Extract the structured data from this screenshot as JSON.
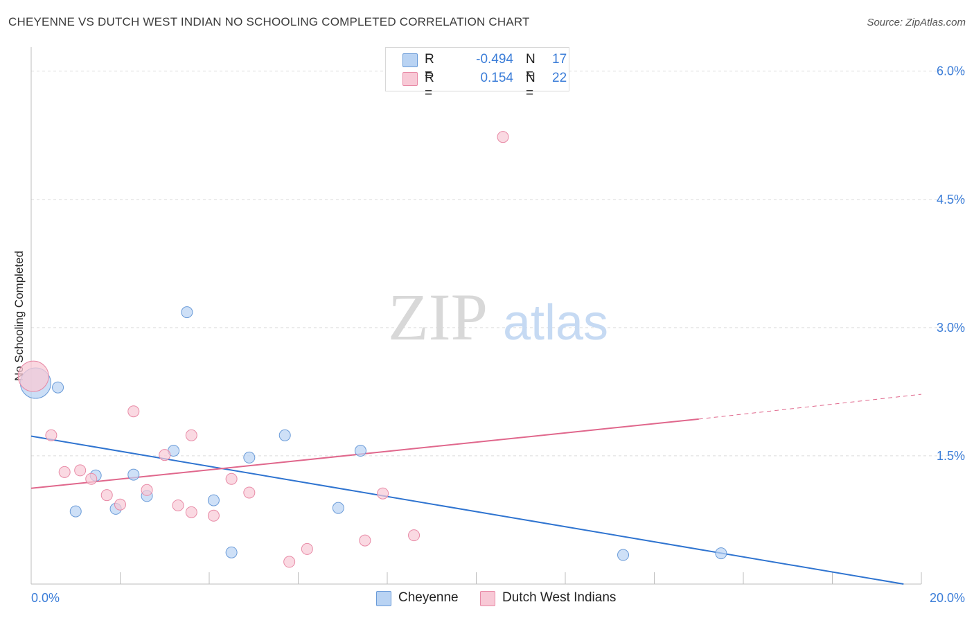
{
  "header": {
    "title": "CHEYENNE VS DUTCH WEST INDIAN NO SCHOOLING COMPLETED CORRELATION CHART",
    "source": "Source: ZipAtlas.com"
  },
  "watermark": {
    "zip": "ZIP",
    "atlas": "atlas"
  },
  "legend": {
    "rows": [
      {
        "r_label": "R =",
        "r_value": "-0.494",
        "n_label": "N =",
        "n_value": "17"
      },
      {
        "r_label": "R =",
        "r_value": "0.154",
        "n_label": "N =",
        "n_value": "22"
      }
    ]
  },
  "chart_data": {
    "type": "scatter",
    "title": "CHEYENNE VS DUTCH WEST INDIAN NO SCHOOLING COMPLETED CORRELATION CHART",
    "xlabel": "",
    "ylabel": "No Schooling Completed",
    "xlim": [
      0,
      20
    ],
    "ylim": [
      0,
      6.2
    ],
    "x_tick_labels": [
      "0.0%",
      "20.0%"
    ],
    "y_ticks": [
      1.5,
      3.0,
      4.5,
      6.0
    ],
    "y_tick_labels": [
      "1.5%",
      "3.0%",
      "4.5%",
      "6.0%"
    ],
    "grid": "horizontal dashed",
    "colors": {
      "cheyenne_fill": "#b9d3f3",
      "cheyenne_stroke": "#6a9bd8",
      "cheyenne_line": "#2f74d0",
      "dutch_fill": "#f8c9d6",
      "dutch_stroke": "#e88aa6",
      "dutch_line": "#e0678c",
      "tick_label": "#3b7dd8"
    },
    "series": [
      {
        "name": "Cheyenne",
        "points": [
          {
            "x": 0.1,
            "y": 2.35
          },
          {
            "x": 0.6,
            "y": 2.3
          },
          {
            "x": 1.0,
            "y": 0.85
          },
          {
            "x": 1.45,
            "y": 1.27
          },
          {
            "x": 1.9,
            "y": 0.88
          },
          {
            "x": 2.3,
            "y": 1.28
          },
          {
            "x": 2.6,
            "y": 1.03
          },
          {
            "x": 3.2,
            "y": 1.56
          },
          {
            "x": 3.5,
            "y": 3.18
          },
          {
            "x": 4.1,
            "y": 0.98
          },
          {
            "x": 4.5,
            "y": 0.37
          },
          {
            "x": 4.9,
            "y": 1.48
          },
          {
            "x": 5.7,
            "y": 1.74
          },
          {
            "x": 6.9,
            "y": 0.89
          },
          {
            "x": 7.4,
            "y": 1.56
          },
          {
            "x": 13.3,
            "y": 0.34
          },
          {
            "x": 15.5,
            "y": 0.36
          }
        ],
        "trend": {
          "x1": 0,
          "y1": 1.73,
          "x2": 19.6,
          "y2": 0.0
        }
      },
      {
        "name": "Dutch West Indians",
        "points": [
          {
            "x": 0.05,
            "y": 2.43
          },
          {
            "x": 0.45,
            "y": 1.74
          },
          {
            "x": 0.75,
            "y": 1.31
          },
          {
            "x": 1.1,
            "y": 1.33
          },
          {
            "x": 1.35,
            "y": 1.23
          },
          {
            "x": 1.7,
            "y": 1.04
          },
          {
            "x": 2.0,
            "y": 0.93
          },
          {
            "x": 2.3,
            "y": 2.02
          },
          {
            "x": 2.6,
            "y": 1.1
          },
          {
            "x": 3.0,
            "y": 1.51
          },
          {
            "x": 3.3,
            "y": 0.92
          },
          {
            "x": 3.6,
            "y": 0.84
          },
          {
            "x": 3.6,
            "y": 1.74
          },
          {
            "x": 4.1,
            "y": 0.8
          },
          {
            "x": 4.5,
            "y": 1.23
          },
          {
            "x": 4.9,
            "y": 1.07
          },
          {
            "x": 5.8,
            "y": 0.26
          },
          {
            "x": 6.2,
            "y": 0.41
          },
          {
            "x": 7.5,
            "y": 0.51
          },
          {
            "x": 7.9,
            "y": 1.06
          },
          {
            "x": 8.6,
            "y": 0.57
          },
          {
            "x": 10.6,
            "y": 5.23
          }
        ],
        "trend": {
          "x1": 0,
          "y1": 1.12,
          "x2": 15.0,
          "y2": 1.93,
          "dashed_to_x": 20,
          "dashed_to_y": 2.22
        }
      }
    ]
  },
  "bottom_legend": {
    "items": [
      {
        "label": "Cheyenne"
      },
      {
        "label": "Dutch West Indians"
      }
    ]
  }
}
